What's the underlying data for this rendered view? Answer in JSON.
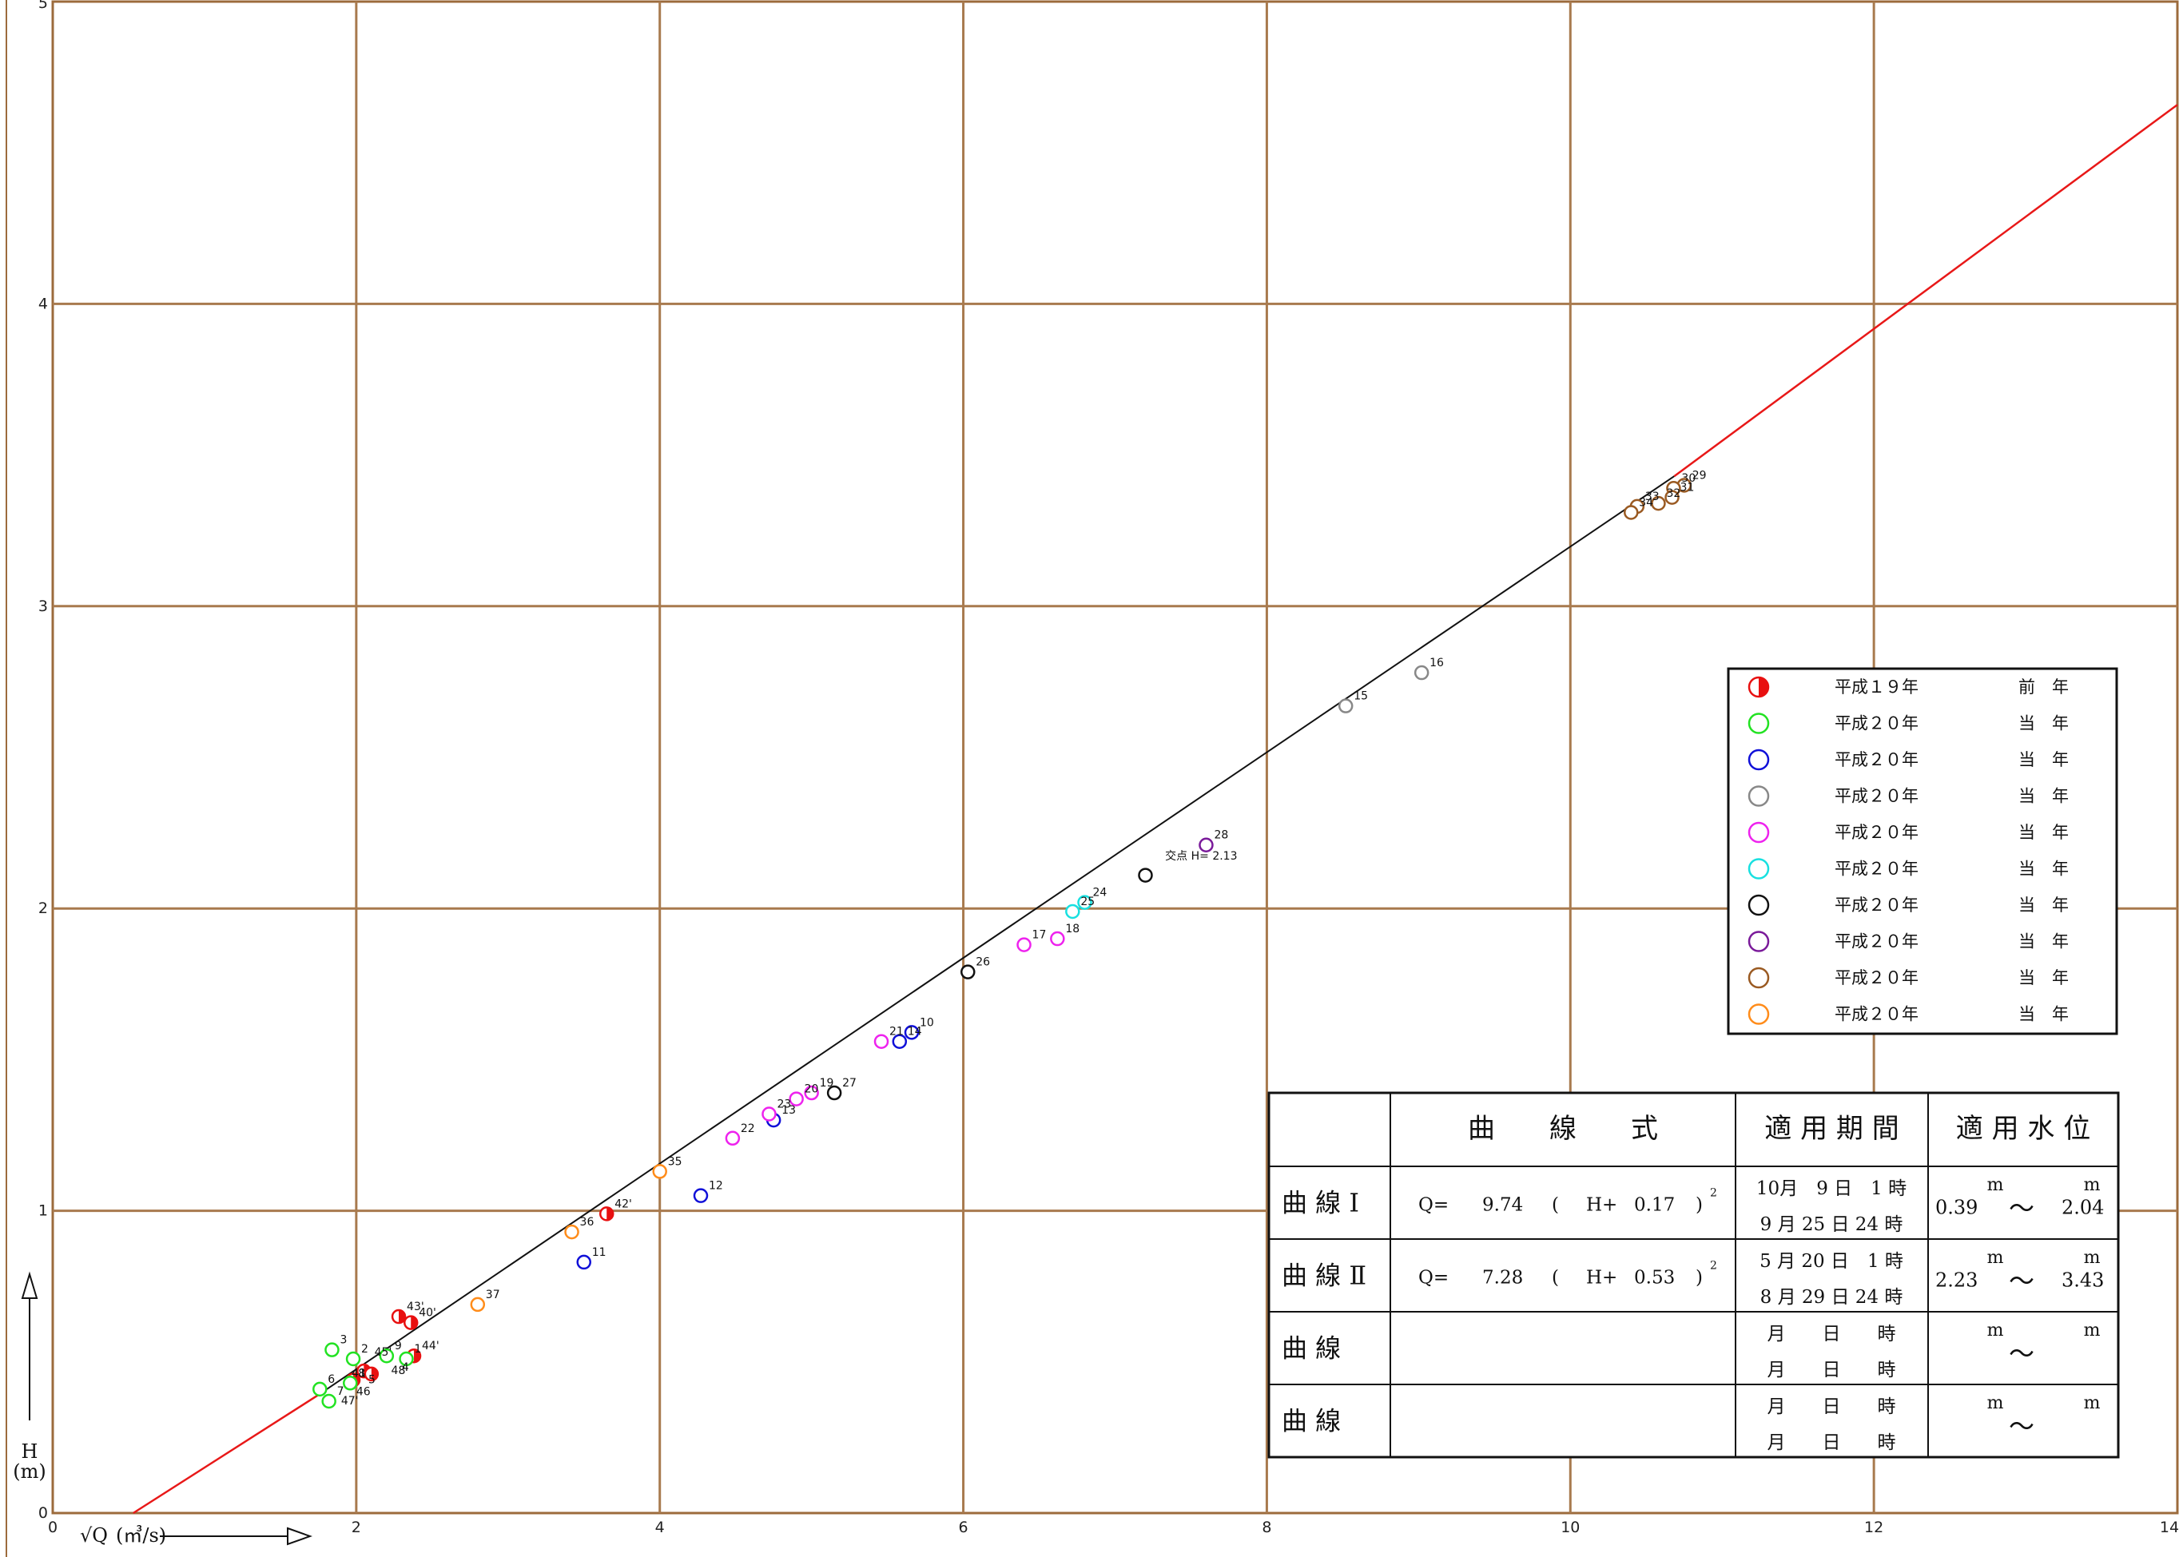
{
  "chart_data": {
    "type": "scatter",
    "xlim": [
      0,
      14
    ],
    "ylim": [
      0,
      5
    ],
    "x_ticks": [
      "0",
      "2",
      "4",
      "6",
      "8",
      "10",
      "12",
      "14"
    ],
    "y_ticks": [
      "0",
      "1",
      "2",
      "3",
      "4",
      "5"
    ],
    "grid": true,
    "xlabel_prefix": "√Q",
    "xlabel_unit": "(㎥/s)",
    "ylabel": "H",
    "ylabel_unit": "(m)",
    "series": [
      {
        "color": "#e81010",
        "fill": "half",
        "points": [
          {
            "x": 2.28,
            "y": 0.65,
            "label": "43'"
          },
          {
            "x": 2.36,
            "y": 0.63,
            "label": "40'"
          },
          {
            "x": 2.38,
            "y": 0.52,
            "label": "44'"
          },
          {
            "x": 2.05,
            "y": 0.47,
            "label": ""
          },
          {
            "x": 2.1,
            "y": 0.46,
            "label": ""
          },
          {
            "x": 1.98,
            "y": 0.44,
            "label": ""
          },
          {
            "x": 3.65,
            "y": 0.99,
            "label": "42'"
          }
        ]
      },
      {
        "color": "#22e222",
        "fill": "none",
        "points": [
          {
            "x": 1.84,
            "y": 0.54,
            "label": "3"
          },
          {
            "x": 1.98,
            "y": 0.51,
            "label": "2"
          },
          {
            "x": 2.2,
            "y": 0.52,
            "label": "9"
          },
          {
            "x": 2.33,
            "y": 0.51,
            "label": "1"
          },
          {
            "x": 1.76,
            "y": 0.41,
            "label": "6"
          },
          {
            "x": 1.82,
            "y": 0.37,
            "label": "7"
          },
          {
            "x": 1.96,
            "y": 0.43,
            "label": "8"
          }
        ]
      },
      {
        "color": "#1010d8",
        "fill": "none",
        "points": [
          {
            "x": 5.66,
            "y": 1.59,
            "label": "10"
          },
          {
            "x": 5.58,
            "y": 1.56,
            "label": "14"
          },
          {
            "x": 3.5,
            "y": 0.83,
            "label": "11"
          },
          {
            "x": 4.27,
            "y": 1.05,
            "label": "12"
          },
          {
            "x": 4.75,
            "y": 1.3,
            "label": "13"
          }
        ]
      },
      {
        "color": "#888888",
        "fill": "none",
        "points": [
          {
            "x": 8.52,
            "y": 2.67,
            "label": "15"
          },
          {
            "x": 9.02,
            "y": 2.78,
            "label": "16"
          }
        ]
      },
      {
        "color": "#ee22ee",
        "fill": "none",
        "points": [
          {
            "x": 6.4,
            "y": 1.88,
            "label": "17"
          },
          {
            "x": 6.62,
            "y": 1.9,
            "label": "18"
          },
          {
            "x": 5.0,
            "y": 1.39,
            "label": "19"
          },
          {
            "x": 4.9,
            "y": 1.37,
            "label": "20"
          },
          {
            "x": 5.46,
            "y": 1.56,
            "label": "21"
          },
          {
            "x": 4.48,
            "y": 1.24,
            "label": "22"
          },
          {
            "x": 4.72,
            "y": 1.32,
            "label": "23"
          }
        ]
      },
      {
        "color": "#18e0e0",
        "fill": "none",
        "points": [
          {
            "x": 6.8,
            "y": 2.02,
            "label": "24"
          },
          {
            "x": 6.72,
            "y": 1.99,
            "label": "25"
          }
        ]
      },
      {
        "color": "#111111",
        "fill": "none",
        "points": [
          {
            "x": 6.03,
            "y": 1.79,
            "label": "26"
          },
          {
            "x": 5.15,
            "y": 1.39,
            "label": "27"
          },
          {
            "x": 7.2,
            "y": 2.11,
            "label": ""
          }
        ]
      },
      {
        "color": "#7a1a9a",
        "fill": "none",
        "points": [
          {
            "x": 7.6,
            "y": 2.21,
            "label": "28"
          }
        ]
      },
      {
        "color": "#9a5a22",
        "fill": "none",
        "points": [
          {
            "x": 10.75,
            "y": 3.4,
            "label": "29"
          },
          {
            "x": 10.68,
            "y": 3.39,
            "label": "30"
          },
          {
            "x": 10.67,
            "y": 3.36,
            "label": "31"
          },
          {
            "x": 10.58,
            "y": 3.34,
            "label": "32"
          },
          {
            "x": 10.44,
            "y": 3.33,
            "label": "33"
          },
          {
            "x": 10.4,
            "y": 3.31,
            "label": "34"
          }
        ]
      },
      {
        "color": "#ff8c1a",
        "fill": "none",
        "points": [
          {
            "x": 4.0,
            "y": 1.13,
            "label": "35"
          },
          {
            "x": 3.42,
            "y": 0.93,
            "label": "36"
          },
          {
            "x": 2.8,
            "y": 0.69,
            "label": "37"
          }
        ]
      }
    ],
    "extra_labels": [
      {
        "x": 2.12,
        "y": 0.52,
        "text": "45'"
      },
      {
        "x": 1.97,
        "y": 0.45,
        "text": "41"
      },
      {
        "x": 2.23,
        "y": 0.46,
        "text": "48"
      },
      {
        "x": 2.08,
        "y": 0.43,
        "text": "5"
      },
      {
        "x": 2.3,
        "y": 0.47,
        "text": "4"
      },
      {
        "x": 2.0,
        "y": 0.39,
        "text": "46"
      },
      {
        "x": 1.9,
        "y": 0.36,
        "text": "47'"
      }
    ],
    "curves": [
      {
        "name": "曲線Ⅰ",
        "a": 9.74,
        "b": 0.17,
        "h_range": [
          0.39,
          2.04
        ],
        "x_range": [
          0.52,
          10.8
        ]
      },
      {
        "name": "曲線Ⅱ",
        "a": 7.28,
        "b": 0.53,
        "h_range": [
          2.23,
          3.43
        ],
        "x_range": [
          10.8,
          14
        ]
      }
    ],
    "crossing_label": "交点 H= 2.13",
    "legend": [
      {
        "color": "#e81010",
        "fill": "half",
        "era": "平成１９年",
        "kind": "前　年"
      },
      {
        "color": "#22e222",
        "fill": "none",
        "era": "平成２０年",
        "kind": "当　年"
      },
      {
        "color": "#1010d8",
        "fill": "none",
        "era": "平成２０年",
        "kind": "当　年"
      },
      {
        "color": "#888888",
        "fill": "none",
        "era": "平成２０年",
        "kind": "当　年"
      },
      {
        "color": "#ee22ee",
        "fill": "none",
        "era": "平成２０年",
        "kind": "当　年"
      },
      {
        "color": "#18e0e0",
        "fill": "none",
        "era": "平成２０年",
        "kind": "当　年"
      },
      {
        "color": "#111111",
        "fill": "none",
        "era": "平成２０年",
        "kind": "当　年"
      },
      {
        "color": "#7a1a9a",
        "fill": "none",
        "era": "平成２０年",
        "kind": "当　年"
      },
      {
        "color": "#9a5a22",
        "fill": "none",
        "era": "平成２０年",
        "kind": "当　年"
      },
      {
        "color": "#ff8c1a",
        "fill": "none",
        "era": "平成２０年",
        "kind": "当　年"
      }
    ],
    "table": {
      "headers": [
        "曲　　線　　式",
        "適 用 期 間",
        "適 用 水 位"
      ],
      "rows": [
        {
          "name": "曲 線 Ⅰ",
          "q": "Q=",
          "a": "9.74",
          "open": "(",
          "h": "H+",
          "b": "0.17",
          "close": ")",
          "exp": "2",
          "period1": "10月　9 日　1 時",
          "period2": "9 月 25 日 24 時",
          "level_from": "0.39",
          "level_to": "2.04",
          "unit": "m",
          "tilde": "～"
        },
        {
          "name": "曲 線 Ⅱ",
          "q": "Q=",
          "a": "7.28",
          "open": "(",
          "h": "H+",
          "b": "0.53",
          "close": ")",
          "exp": "2",
          "period1": "5 月 20 日　1 時",
          "period2": "8 月 29 日 24 時",
          "level_from": "2.23",
          "level_to": "3.43",
          "unit": "m",
          "tilde": "～"
        },
        {
          "name": "曲 線",
          "q": "",
          "a": "",
          "open": "",
          "h": "",
          "b": "",
          "close": "",
          "exp": "",
          "period1": "月　　日　　時",
          "period2": "月　　日　　時",
          "level_from": "",
          "level_to": "",
          "unit": "m",
          "tilde": "～"
        },
        {
          "name": "曲 線",
          "q": "",
          "a": "",
          "open": "",
          "h": "",
          "b": "",
          "close": "",
          "exp": "",
          "period1": "月　　日　　時",
          "period2": "月　　日　　時",
          "level_from": "",
          "level_to": "",
          "unit": "m",
          "tilde": "～"
        }
      ]
    }
  }
}
